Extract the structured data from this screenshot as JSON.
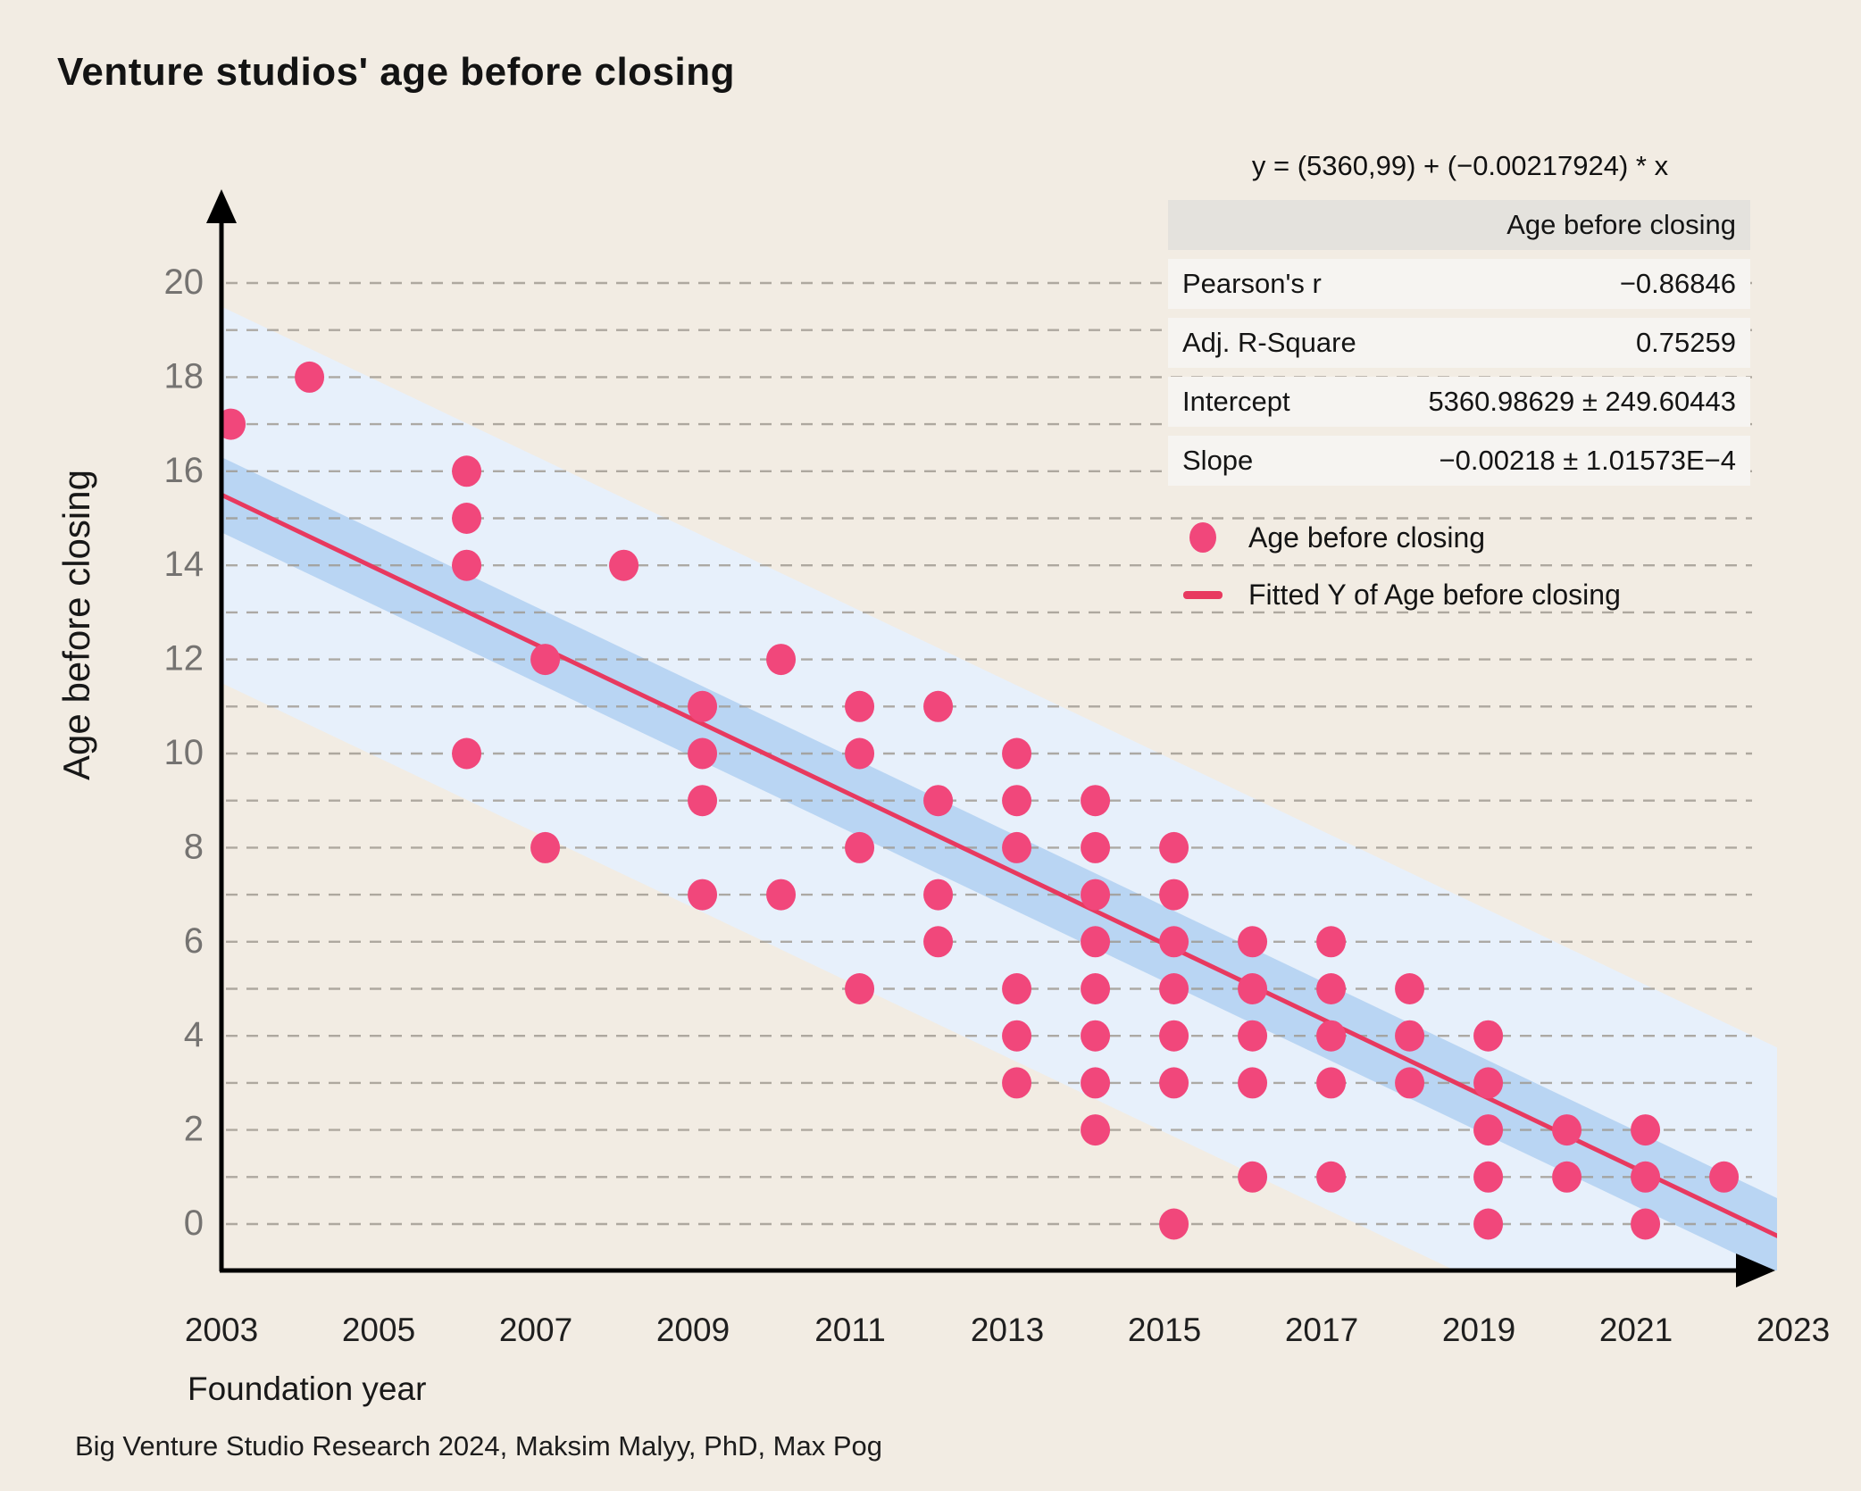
{
  "title": "Venture studios' age before closing",
  "equation": "y = (5360,99) + (−0.00217924) * x",
  "stats_table": {
    "header": "Age before closing",
    "rows": [
      {
        "label": "Pearson's r",
        "value": "−0.86846"
      },
      {
        "label": "Adj. R-Square",
        "value": "0.75259"
      },
      {
        "label": "Intercept",
        "value": "5360.98629 ± 249.60443"
      },
      {
        "label": "Slope",
        "value": "−0.00218 ± 1.01573E−4"
      }
    ]
  },
  "legend": [
    {
      "marker": "dot",
      "label": "Age before closing"
    },
    {
      "marker": "line",
      "label": "Fitted Y of Age before closing"
    }
  ],
  "caption": "Big Venture Studio Research 2024, Maksim Malyy, PhD, Max Pog",
  "colors": {
    "background": "#F2ECE3",
    "point": "#F1477B",
    "fit_line": "#E8395F",
    "inner_band": "#B9D5F3",
    "outer_band": "#E7F0FB",
    "grid": "#9E988F",
    "axis": "#000000",
    "y_tick": "#757371",
    "x_tick": "#1f1f1f"
  },
  "chart_data": {
    "type": "scatter",
    "title": "Venture studios' age before closing",
    "xlabel": "Foundation year",
    "ylabel": "Age before closing",
    "x_domain": [
      2003,
      2023
    ],
    "y_domain": [
      0,
      20
    ],
    "x_ticks": [
      2003,
      2005,
      2007,
      2009,
      2011,
      2013,
      2015,
      2017,
      2019,
      2021,
      2023
    ],
    "y_ticks": [
      0,
      2,
      4,
      6,
      8,
      10,
      12,
      14,
      16,
      18,
      20
    ],
    "grid_lines_every": 1,
    "legend_position": "top-right",
    "series_name": "Age before closing",
    "points": [
      {
        "x": 2003,
        "y": 17
      },
      {
        "x": 2004,
        "y": 18
      },
      {
        "x": 2006,
        "y": 16
      },
      {
        "x": 2006,
        "y": 15
      },
      {
        "x": 2006,
        "y": 14
      },
      {
        "x": 2006,
        "y": 10
      },
      {
        "x": 2007,
        "y": 12
      },
      {
        "x": 2007,
        "y": 8
      },
      {
        "x": 2008,
        "y": 14
      },
      {
        "x": 2009,
        "y": 11
      },
      {
        "x": 2009,
        "y": 10
      },
      {
        "x": 2009,
        "y": 9
      },
      {
        "x": 2009,
        "y": 7
      },
      {
        "x": 2010,
        "y": 12
      },
      {
        "x": 2010,
        "y": 7
      },
      {
        "x": 2011,
        "y": 11
      },
      {
        "x": 2011,
        "y": 10
      },
      {
        "x": 2011,
        "y": 8
      },
      {
        "x": 2011,
        "y": 5
      },
      {
        "x": 2012,
        "y": 11
      },
      {
        "x": 2012,
        "y": 9
      },
      {
        "x": 2012,
        "y": 7
      },
      {
        "x": 2012,
        "y": 6
      },
      {
        "x": 2013,
        "y": 10
      },
      {
        "x": 2013,
        "y": 9
      },
      {
        "x": 2013,
        "y": 8
      },
      {
        "x": 2013,
        "y": 5
      },
      {
        "x": 2013,
        "y": 4
      },
      {
        "x": 2013,
        "y": 3
      },
      {
        "x": 2014,
        "y": 9
      },
      {
        "x": 2014,
        "y": 8
      },
      {
        "x": 2014,
        "y": 7
      },
      {
        "x": 2014,
        "y": 6
      },
      {
        "x": 2014,
        "y": 5
      },
      {
        "x": 2014,
        "y": 4
      },
      {
        "x": 2014,
        "y": 3
      },
      {
        "x": 2014,
        "y": 2
      },
      {
        "x": 2015,
        "y": 8
      },
      {
        "x": 2015,
        "y": 7
      },
      {
        "x": 2015,
        "y": 6
      },
      {
        "x": 2015,
        "y": 5
      },
      {
        "x": 2015,
        "y": 4
      },
      {
        "x": 2015,
        "y": 3
      },
      {
        "x": 2015,
        "y": 0
      },
      {
        "x": 2016,
        "y": 6
      },
      {
        "x": 2016,
        "y": 5
      },
      {
        "x": 2016,
        "y": 4
      },
      {
        "x": 2016,
        "y": 3
      },
      {
        "x": 2016,
        "y": 1
      },
      {
        "x": 2017,
        "y": 6
      },
      {
        "x": 2017,
        "y": 5
      },
      {
        "x": 2017,
        "y": 4
      },
      {
        "x": 2017,
        "y": 3
      },
      {
        "x": 2017,
        "y": 1
      },
      {
        "x": 2018,
        "y": 5
      },
      {
        "x": 2018,
        "y": 4
      },
      {
        "x": 2018,
        "y": 3
      },
      {
        "x": 2019,
        "y": 4
      },
      {
        "x": 2019,
        "y": 3
      },
      {
        "x": 2019,
        "y": 2
      },
      {
        "x": 2019,
        "y": 1
      },
      {
        "x": 2019,
        "y": 0
      },
      {
        "x": 2020,
        "y": 2
      },
      {
        "x": 2020,
        "y": 1
      },
      {
        "x": 2021,
        "y": 2
      },
      {
        "x": 2021,
        "y": 1
      },
      {
        "x": 2021,
        "y": 0
      },
      {
        "x": 2022,
        "y": 1
      }
    ],
    "point_x_offset_years": 0.12,
    "fit": {
      "name": "Fitted Y of Age before closing",
      "x_start": 2003,
      "y_start": 15.5,
      "x_end": 2023.3,
      "y_end": -0.65,
      "inner_band_halfwidth": 0.8,
      "outer_band_halfwidth": 4.0
    }
  }
}
